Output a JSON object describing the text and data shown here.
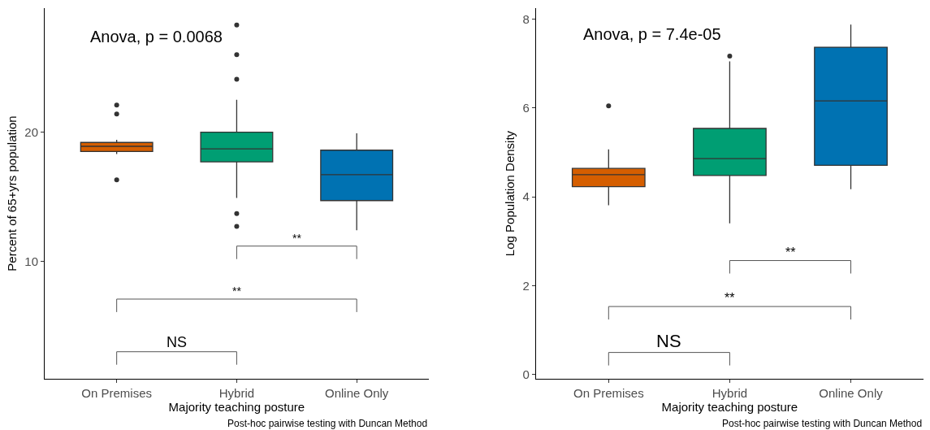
{
  "chart_data": [
    {
      "type": "box",
      "xlabel": "Majority teaching posture",
      "ylabel": "Percent of 65+yrs population",
      "categories": [
        "On Premises",
        "Hybrid",
        "Online Only"
      ],
      "colors": [
        "#d55e00",
        "#009e73",
        "#0072b2"
      ],
      "boxes": [
        {
          "low": 18.3,
          "q1": 18.5,
          "median": 18.9,
          "q3": 19.2,
          "high": 19.4,
          "outliers": [
            22.1,
            21.4,
            16.3
          ]
        },
        {
          "low": 14.9,
          "q1": 17.7,
          "median": 18.7,
          "q3": 20.0,
          "high": 22.5,
          "outliers": [
            28.3,
            26.0,
            24.1,
            13.7,
            12.7
          ]
        },
        {
          "low": 12.4,
          "q1": 14.7,
          "median": 16.7,
          "q3": 18.6,
          "high": 19.9
        }
      ],
      "ylim": [
        0.9,
        29.6
      ],
      "yticks": [
        10,
        20
      ],
      "annotations": [
        "Anova, p = 0.0068",
        "**",
        "**",
        "NS",
        "Post-hoc pairwise testing with Duncan Method"
      ]
    },
    {
      "type": "box",
      "xlabel": "Majority teaching posture",
      "ylabel": "Log Population Density",
      "categories": [
        "On Premises",
        "Hybrid",
        "Online Only"
      ],
      "colors": [
        "#d55e00",
        "#009e73",
        "#0072b2"
      ],
      "boxes": [
        {
          "low": 3.81,
          "q1": 4.23,
          "median": 4.5,
          "q3": 4.64,
          "high": 5.07,
          "outliers": [
            6.05
          ]
        },
        {
          "low": 3.4,
          "q1": 4.48,
          "median": 4.86,
          "q3": 5.54,
          "high": 7.05,
          "outliers": [
            7.17
          ]
        },
        {
          "low": 4.17,
          "q1": 4.71,
          "median": 6.16,
          "q3": 7.37,
          "high": 7.88
        }
      ],
      "ylim": [
        -0.1,
        8.25
      ],
      "yticks": [
        0,
        2,
        4,
        6,
        8
      ],
      "annotations": [
        "Anova, p = 7.4e-05",
        "**",
        "**",
        "NS",
        "Post-hoc pairwise testing with Duncan Method"
      ]
    }
  ]
}
